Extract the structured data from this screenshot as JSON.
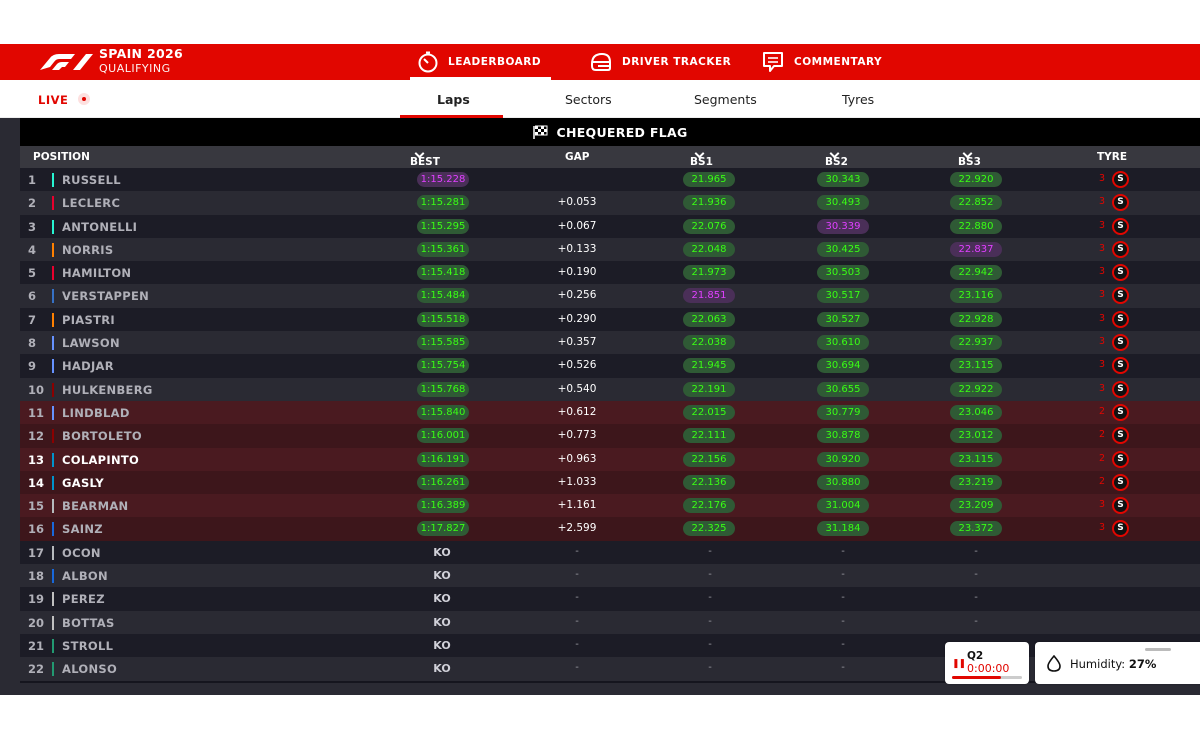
{
  "header": {
    "event_title": "SPAIN 2026",
    "session": "QUALIFYING",
    "tabs": [
      {
        "label": "LEADERBOARD",
        "icon": "stopwatch-icon"
      },
      {
        "label": "DRIVER TRACKER",
        "icon": "helmet-icon"
      },
      {
        "label": "COMMENTARY",
        "icon": "chat-icon"
      }
    ],
    "colors": {
      "brand_red": "#e10600",
      "fastest_purple": "#e040ff",
      "personal_green": "#39ff14"
    }
  },
  "subnav": {
    "live": "LIVE",
    "tabs": [
      "Laps",
      "Sectors",
      "Segments",
      "Tyres"
    ]
  },
  "banner": "CHEQUERED FLAG",
  "columns": {
    "position": "POSITION",
    "best_lap": "BEST LAP",
    "gap": "GAP",
    "bs1": "BS1",
    "bs2": "BS2",
    "bs3": "BS3",
    "tyre": "TYRE"
  },
  "rows": [
    {
      "pos": "1",
      "driver": "RUSSELL",
      "team_color": "#27f4d2",
      "best": "1:15.228",
      "best_purple": true,
      "gap": "",
      "bs1": "21.965",
      "bs1_purple": false,
      "bs2": "30.343",
      "bs2_purple": false,
      "bs3": "22.920",
      "bs3_purple": false,
      "laps": "3",
      "tyre": "S",
      "eliminated_zone": false,
      "ko": false
    },
    {
      "pos": "2",
      "driver": "LECLERC",
      "team_color": "#e8002d",
      "best": "1:15.281",
      "best_purple": false,
      "gap": "+0.053",
      "bs1": "21.936",
      "bs1_purple": false,
      "bs2": "30.493",
      "bs2_purple": false,
      "bs3": "22.852",
      "bs3_purple": false,
      "laps": "3",
      "tyre": "S",
      "eliminated_zone": false,
      "ko": false
    },
    {
      "pos": "3",
      "driver": "ANTONELLI",
      "team_color": "#27f4d2",
      "best": "1:15.295",
      "best_purple": false,
      "gap": "+0.067",
      "bs1": "22.076",
      "bs1_purple": false,
      "bs2": "30.339",
      "bs2_purple": true,
      "bs3": "22.880",
      "bs3_purple": false,
      "laps": "3",
      "tyre": "S",
      "eliminated_zone": false,
      "ko": false
    },
    {
      "pos": "4",
      "driver": "NORRIS",
      "team_color": "#ff8000",
      "best": "1:15.361",
      "best_purple": false,
      "gap": "+0.133",
      "bs1": "22.048",
      "bs1_purple": false,
      "bs2": "30.425",
      "bs2_purple": false,
      "bs3": "22.837",
      "bs3_purple": true,
      "laps": "3",
      "tyre": "S",
      "eliminated_zone": false,
      "ko": false
    },
    {
      "pos": "5",
      "driver": "HAMILTON",
      "team_color": "#e8002d",
      "best": "1:15.418",
      "best_purple": false,
      "gap": "+0.190",
      "bs1": "21.973",
      "bs1_purple": false,
      "bs2": "30.503",
      "bs2_purple": false,
      "bs3": "22.942",
      "bs3_purple": false,
      "laps": "3",
      "tyre": "S",
      "eliminated_zone": false,
      "ko": false
    },
    {
      "pos": "6",
      "driver": "VERSTAPPEN",
      "team_color": "#3671c6",
      "best": "1:15.484",
      "best_purple": false,
      "gap": "+0.256",
      "bs1": "21.851",
      "bs1_purple": true,
      "bs2": "30.517",
      "bs2_purple": false,
      "bs3": "23.116",
      "bs3_purple": false,
      "laps": "3",
      "tyre": "S",
      "eliminated_zone": false,
      "ko": false
    },
    {
      "pos": "7",
      "driver": "PIASTRI",
      "team_color": "#ff8000",
      "best": "1:15.518",
      "best_purple": false,
      "gap": "+0.290",
      "bs1": "22.063",
      "bs1_purple": false,
      "bs2": "30.527",
      "bs2_purple": false,
      "bs3": "22.928",
      "bs3_purple": false,
      "laps": "3",
      "tyre": "S",
      "eliminated_zone": false,
      "ko": false
    },
    {
      "pos": "8",
      "driver": "LAWSON",
      "team_color": "#6692ff",
      "best": "1:15.585",
      "best_purple": false,
      "gap": "+0.357",
      "bs1": "22.038",
      "bs1_purple": false,
      "bs2": "30.610",
      "bs2_purple": false,
      "bs3": "22.937",
      "bs3_purple": false,
      "laps": "3",
      "tyre": "S",
      "eliminated_zone": false,
      "ko": false
    },
    {
      "pos": "9",
      "driver": "HADJAR",
      "team_color": "#6692ff",
      "best": "1:15.754",
      "best_purple": false,
      "gap": "+0.526",
      "bs1": "21.945",
      "bs1_purple": false,
      "bs2": "30.694",
      "bs2_purple": false,
      "bs3": "23.115",
      "bs3_purple": false,
      "laps": "3",
      "tyre": "S",
      "eliminated_zone": false,
      "ko": false
    },
    {
      "pos": "10",
      "driver": "HULKENBERG",
      "team_color": "#8b0000",
      "best": "1:15.768",
      "best_purple": false,
      "gap": "+0.540",
      "bs1": "22.191",
      "bs1_purple": false,
      "bs2": "30.655",
      "bs2_purple": false,
      "bs3": "22.922",
      "bs3_purple": false,
      "laps": "3",
      "tyre": "S",
      "eliminated_zone": false,
      "ko": false
    },
    {
      "pos": "11",
      "driver": "LINDBLAD",
      "team_color": "#6692ff",
      "best": "1:15.840",
      "best_purple": false,
      "gap": "+0.612",
      "bs1": "22.015",
      "bs1_purple": false,
      "bs2": "30.779",
      "bs2_purple": false,
      "bs3": "23.046",
      "bs3_purple": false,
      "laps": "2",
      "tyre": "S",
      "eliminated_zone": true,
      "ko": false
    },
    {
      "pos": "12",
      "driver": "BORTOLETO",
      "team_color": "#8b0000",
      "best": "1:16.001",
      "best_purple": false,
      "gap": "+0.773",
      "bs1": "22.111",
      "bs1_purple": false,
      "bs2": "30.878",
      "bs2_purple": false,
      "bs3": "23.012",
      "bs3_purple": false,
      "laps": "2",
      "tyre": "S",
      "eliminated_zone": true,
      "ko": false
    },
    {
      "pos": "13",
      "driver": "COLAPINTO",
      "team_color": "#0093cc",
      "best": "1:16.191",
      "best_purple": false,
      "gap": "+0.963",
      "bs1": "22.156",
      "bs1_purple": false,
      "bs2": "30.920",
      "bs2_purple": false,
      "bs3": "23.115",
      "bs3_purple": false,
      "laps": "2",
      "tyre": "S",
      "eliminated_zone": true,
      "ko": false,
      "highlight": true
    },
    {
      "pos": "14",
      "driver": "GASLY",
      "team_color": "#0093cc",
      "best": "1:16.261",
      "best_purple": false,
      "gap": "+1.033",
      "bs1": "22.136",
      "bs1_purple": false,
      "bs2": "30.880",
      "bs2_purple": false,
      "bs3": "23.219",
      "bs3_purple": false,
      "laps": "2",
      "tyre": "S",
      "eliminated_zone": true,
      "ko": false,
      "highlight": true
    },
    {
      "pos": "15",
      "driver": "BEARMAN",
      "team_color": "#b6babd",
      "best": "1:16.389",
      "best_purple": false,
      "gap": "+1.161",
      "bs1": "22.176",
      "bs1_purple": false,
      "bs2": "31.004",
      "bs2_purple": false,
      "bs3": "23.209",
      "bs3_purple": false,
      "laps": "3",
      "tyre": "S",
      "eliminated_zone": true,
      "ko": false
    },
    {
      "pos": "16",
      "driver": "SAINZ",
      "team_color": "#1868db",
      "best": "1:17.827",
      "best_purple": false,
      "gap": "+2.599",
      "bs1": "22.325",
      "bs1_purple": false,
      "bs2": "31.184",
      "bs2_purple": false,
      "bs3": "23.372",
      "bs3_purple": false,
      "laps": "3",
      "tyre": "S",
      "eliminated_zone": true,
      "ko": false
    },
    {
      "pos": "17",
      "driver": "OCON",
      "team_color": "#b6babd",
      "best": "KO",
      "gap": "-",
      "bs1": "-",
      "bs2": "-",
      "bs3": "-",
      "laps": "",
      "tyre": "",
      "eliminated_zone": false,
      "ko": true
    },
    {
      "pos": "18",
      "driver": "ALBON",
      "team_color": "#1868db",
      "best": "KO",
      "gap": "-",
      "bs1": "-",
      "bs2": "-",
      "bs3": "-",
      "laps": "",
      "tyre": "",
      "eliminated_zone": false,
      "ko": true
    },
    {
      "pos": "19",
      "driver": "PEREZ",
      "team_color": "#c0c0c0",
      "best": "KO",
      "gap": "-",
      "bs1": "-",
      "bs2": "-",
      "bs3": "-",
      "laps": "",
      "tyre": "",
      "eliminated_zone": false,
      "ko": true
    },
    {
      "pos": "20",
      "driver": "BOTTAS",
      "team_color": "#c0c0c0",
      "best": "KO",
      "gap": "-",
      "bs1": "-",
      "bs2": "-",
      "bs3": "-",
      "laps": "",
      "tyre": "",
      "eliminated_zone": false,
      "ko": true
    },
    {
      "pos": "21",
      "driver": "STROLL",
      "team_color": "#229971",
      "best": "KO",
      "gap": "-",
      "bs1": "-",
      "bs2": "-",
      "bs3": "-",
      "laps": "",
      "tyre": "",
      "eliminated_zone": false,
      "ko": true
    },
    {
      "pos": "22",
      "driver": "ALONSO",
      "team_color": "#229971",
      "best": "KO",
      "gap": "-",
      "bs1": "-",
      "bs2": "-",
      "bs3": "-",
      "laps": "",
      "tyre": "",
      "eliminated_zone": false,
      "ko": true
    }
  ],
  "session_widget": {
    "label": "Q2",
    "time": "0:00:00",
    "progress": 0.7
  },
  "weather_widget": {
    "label": "Humidity:",
    "value": "27%"
  }
}
